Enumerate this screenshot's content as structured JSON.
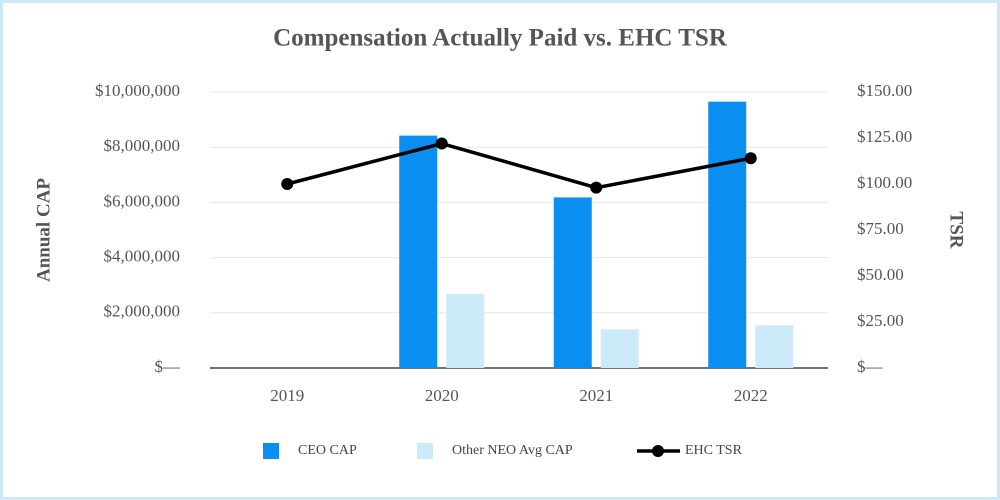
{
  "chart_data": {
    "type": "bar",
    "title": "Compensation Actually Paid vs. EHC TSR",
    "y_label": "Annual CAP",
    "y2_label": "TSR",
    "categories": [
      "2019",
      "2020",
      "2021",
      "2022"
    ],
    "series": [
      {
        "name": "CEO CAP",
        "type": "bar",
        "color": "#0a8ef0",
        "values": [
          null,
          8420000,
          6180000,
          9650000
        ]
      },
      {
        "name": "Other NEO Avg CAP",
        "type": "bar",
        "color": "#cdeafb",
        "values": [
          null,
          2680000,
          1400000,
          1550000
        ]
      },
      {
        "name": "EHC TSR",
        "type": "line",
        "axis": "y2",
        "color": "#000000",
        "values": [
          100,
          122,
          98,
          114
        ]
      }
    ],
    "ylim": [
      0,
      10000000
    ],
    "yticks": [
      {
        "value": 0,
        "label": "$—"
      },
      {
        "value": 2000000,
        "label": "$2,000,000"
      },
      {
        "value": 4000000,
        "label": "$4,000,000"
      },
      {
        "value": 6000000,
        "label": "$6,000,000"
      },
      {
        "value": 8000000,
        "label": "$8,000,000"
      },
      {
        "value": 10000000,
        "label": "$10,000,000"
      }
    ],
    "y2lim": [
      0,
      150
    ],
    "y2ticks": [
      {
        "value": 0,
        "label": "$—"
      },
      {
        "value": 25,
        "label": "$25.00"
      },
      {
        "value": 50,
        "label": "$50.00"
      },
      {
        "value": 75,
        "label": "$75.00"
      },
      {
        "value": 100,
        "label": "$100.00"
      },
      {
        "value": 125,
        "label": "$125.00"
      },
      {
        "value": 150,
        "label": "$150.00"
      }
    ],
    "grid": true,
    "legend": "bottom"
  }
}
